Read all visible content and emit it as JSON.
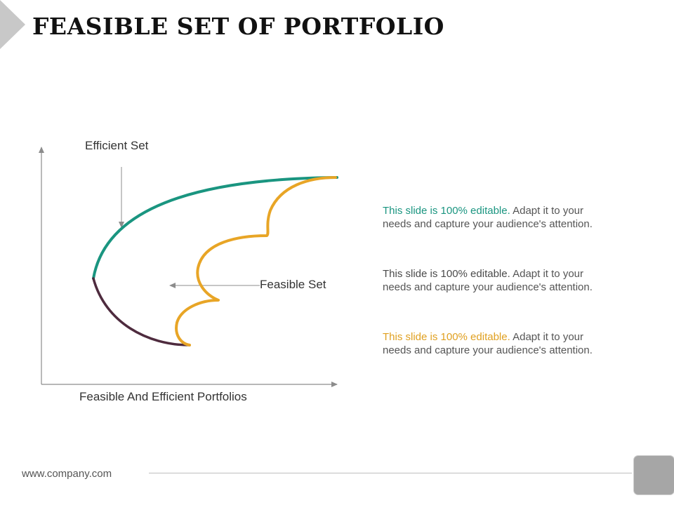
{
  "title": "FEASIBLE SET OF PORTFOLIO",
  "diagram": {
    "efficient_label": "Efficient Set",
    "feasible_label": "Feasible Set",
    "x_axis_label": "Feasible And Efficient Portfolios",
    "colors": {
      "efficient_curve": "#1a9580",
      "lower_curve": "#4e2b3e",
      "feasible_boundary": "#e8a526",
      "axis": "#8c8c8c"
    }
  },
  "descriptions": [
    {
      "highlight": "This slide is 100% editable.",
      "body": " Adapt it to your needs and capture your audience's attention.",
      "color": "#1a9580"
    },
    {
      "highlight": "This slide is 100% editable.",
      "body": " Adapt it to your needs and capture your audience's attention.",
      "color": "#4a4a4a"
    },
    {
      "highlight": "This slide is 100% editable.",
      "body": " Adapt it to your needs and capture your audience's attention.",
      "color": "#e0a020"
    }
  ],
  "footer": {
    "website": "www.company.com"
  }
}
